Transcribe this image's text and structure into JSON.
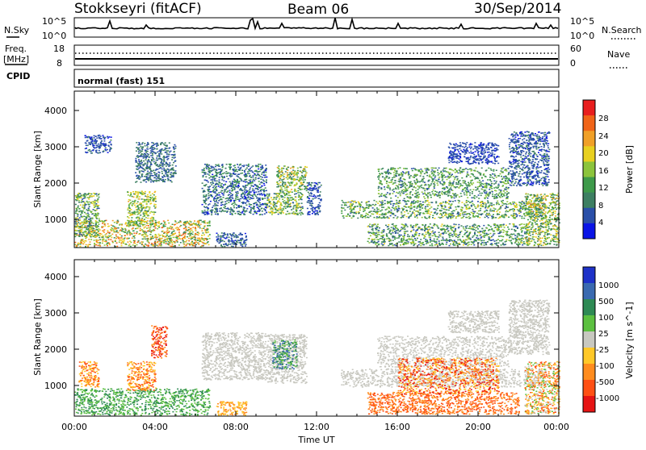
{
  "header": {
    "station": "Stokkseyri (fitACF)",
    "beam": "Beam 06",
    "date": "30/Sep/2014"
  },
  "top_panels": {
    "nsky_label": "N.Sky",
    "nsearch_label": "N.Search",
    "nsky_ticks": [
      "10^5",
      "10^0"
    ],
    "nsearch_ticks": [
      "10^5",
      "10^0"
    ],
    "freq_label_1": "Freq.",
    "freq_label_2": "[MHz]",
    "freq_ticks": [
      "18",
      "8"
    ],
    "nave_label": "Nave",
    "nave_ticks": [
      "60",
      "0"
    ],
    "cpid_label": "CPID",
    "cpid_text": "normal (fast) 151"
  },
  "axes": {
    "ylabel": "Slant Range [km]",
    "xlabel": "Time UT",
    "y_ticks": [
      "4000",
      "3000",
      "2000",
      "1000"
    ],
    "x_ticks": [
      "00:00",
      "04:00",
      "08:00",
      "12:00",
      "16:00",
      "20:00",
      "00:00"
    ]
  },
  "colors": {
    "power": [
      "#0a14e6",
      "#2a4fa8",
      "#3d7f62",
      "#3e9a4a",
      "#8cc43c",
      "#e8d020",
      "#f0a028",
      "#f06418",
      "#e81e1e"
    ],
    "velocity": [
      "#1e32c8",
      "#3a6ab0",
      "#2e8a54",
      "#5cc040",
      "#c8c8c0",
      "#ffc828",
      "#ff8c1e",
      "#ff5014",
      "#e61414"
    ]
  },
  "chart_data": [
    {
      "type": "heatmap",
      "title": "",
      "quantity": "Power",
      "colorbar_label": "Power [dB]",
      "colorbar_ticks": [
        "28",
        "24",
        "20",
        "16",
        "12",
        "8",
        "4"
      ],
      "xlabel": "",
      "ylabel": "Slant Range [km]",
      "xlim_hours": [
        0,
        24
      ],
      "ylim_km": [
        180,
        4500
      ],
      "clim": [
        0,
        32
      ],
      "regions": [
        {
          "t0": 0.0,
          "t1": 6.7,
          "r0": 220,
          "r1": 950,
          "v0": 10,
          "v1": 31
        },
        {
          "t0": 0.0,
          "t1": 1.2,
          "r0": 500,
          "r1": 1700,
          "v0": 6,
          "v1": 22
        },
        {
          "t0": 2.6,
          "t1": 4.0,
          "r0": 800,
          "r1": 1750,
          "v0": 10,
          "v1": 25
        },
        {
          "t0": 0.5,
          "t1": 1.8,
          "r0": 2800,
          "r1": 3300,
          "v0": 3,
          "v1": 9
        },
        {
          "t0": 3.0,
          "t1": 5.0,
          "r0": 2000,
          "r1": 3100,
          "v0": 4,
          "v1": 12
        },
        {
          "t0": 6.3,
          "t1": 9.5,
          "r0": 1100,
          "r1": 2500,
          "v0": 3,
          "v1": 14
        },
        {
          "t0": 7.0,
          "t1": 8.5,
          "r0": 220,
          "r1": 600,
          "v0": 3,
          "v1": 10
        },
        {
          "t0": 9.5,
          "t1": 11.3,
          "r0": 1100,
          "r1": 1700,
          "v0": 6,
          "v1": 24
        },
        {
          "t0": 10.0,
          "t1": 11.5,
          "r0": 1700,
          "r1": 2450,
          "v0": 8,
          "v1": 26
        },
        {
          "t0": 11.5,
          "t1": 12.2,
          "r0": 1100,
          "r1": 2000,
          "v0": 3,
          "v1": 10
        },
        {
          "t0": 13.2,
          "t1": 23.3,
          "r0": 1000,
          "r1": 1500,
          "v0": 6,
          "v1": 22
        },
        {
          "t0": 15.0,
          "t1": 21.5,
          "r0": 1550,
          "r1": 2400,
          "v0": 6,
          "v1": 20
        },
        {
          "t0": 14.5,
          "t1": 22.5,
          "r0": 250,
          "r1": 850,
          "v0": 5,
          "v1": 21
        },
        {
          "t0": 22.3,
          "t1": 24.0,
          "r0": 250,
          "r1": 1700,
          "v0": 8,
          "v1": 26
        },
        {
          "t0": 21.5,
          "t1": 23.5,
          "r0": 1900,
          "r1": 3400,
          "v0": 3,
          "v1": 10
        },
        {
          "t0": 18.5,
          "t1": 21.0,
          "r0": 2500,
          "r1": 3100,
          "v0": 3,
          "v1": 8
        }
      ]
    },
    {
      "type": "heatmap",
      "title": "",
      "quantity": "Velocity",
      "colorbar_label": "Velocity [m s^-1]",
      "colorbar_ticks": [
        "1000",
        "500",
        "100",
        "25",
        "-25",
        "-100",
        "-500",
        "-1000"
      ],
      "xlabel": "Time UT",
      "ylabel": "Slant Range [km]",
      "xlim_hours": [
        0,
        24
      ],
      "ylim_km": [
        180,
        4500
      ],
      "regions": [
        {
          "t0": 0.0,
          "t1": 6.7,
          "r0": 220,
          "r1": 950,
          "c": [
            2,
            3
          ]
        },
        {
          "t0": 0.2,
          "t1": 1.2,
          "r0": 1000,
          "r1": 1700,
          "c": [
            5,
            7
          ]
        },
        {
          "t0": 2.6,
          "t1": 4.0,
          "r0": 900,
          "r1": 1700,
          "c": [
            5,
            7
          ]
        },
        {
          "t0": 3.8,
          "t1": 4.6,
          "r0": 1800,
          "r1": 2700,
          "c": [
            6,
            8
          ]
        },
        {
          "t0": 6.3,
          "t1": 9.5,
          "r0": 1200,
          "r1": 2500,
          "c": [
            4,
            4
          ]
        },
        {
          "t0": 7.0,
          "t1": 8.5,
          "r0": 220,
          "r1": 600,
          "c": [
            5,
            6
          ]
        },
        {
          "t0": 9.5,
          "t1": 11.5,
          "r0": 1100,
          "r1": 2450,
          "c": [
            4,
            4
          ]
        },
        {
          "t0": 9.8,
          "t1": 11.0,
          "r0": 1500,
          "r1": 2300,
          "c": [
            1,
            3
          ]
        },
        {
          "t0": 13.2,
          "t1": 23.3,
          "r0": 1000,
          "r1": 1500,
          "c": [
            4,
            4
          ]
        },
        {
          "t0": 15.0,
          "t1": 21.5,
          "r0": 1550,
          "r1": 2400,
          "c": [
            4,
            4
          ]
        },
        {
          "t0": 14.5,
          "t1": 22.0,
          "r0": 250,
          "r1": 850,
          "c": [
            6,
            7
          ]
        },
        {
          "t0": 16.0,
          "t1": 21.0,
          "r0": 800,
          "r1": 1800,
          "c": [
            5,
            8
          ]
        },
        {
          "t0": 22.3,
          "t1": 24.0,
          "r0": 250,
          "r1": 1700,
          "c": [
            3,
            7
          ]
        },
        {
          "t0": 21.5,
          "t1": 23.5,
          "r0": 1900,
          "r1": 3400,
          "c": [
            4,
            4
          ]
        },
        {
          "t0": 18.5,
          "t1": 21.0,
          "r0": 2500,
          "r1": 3100,
          "c": [
            4,
            4
          ]
        }
      ]
    }
  ]
}
